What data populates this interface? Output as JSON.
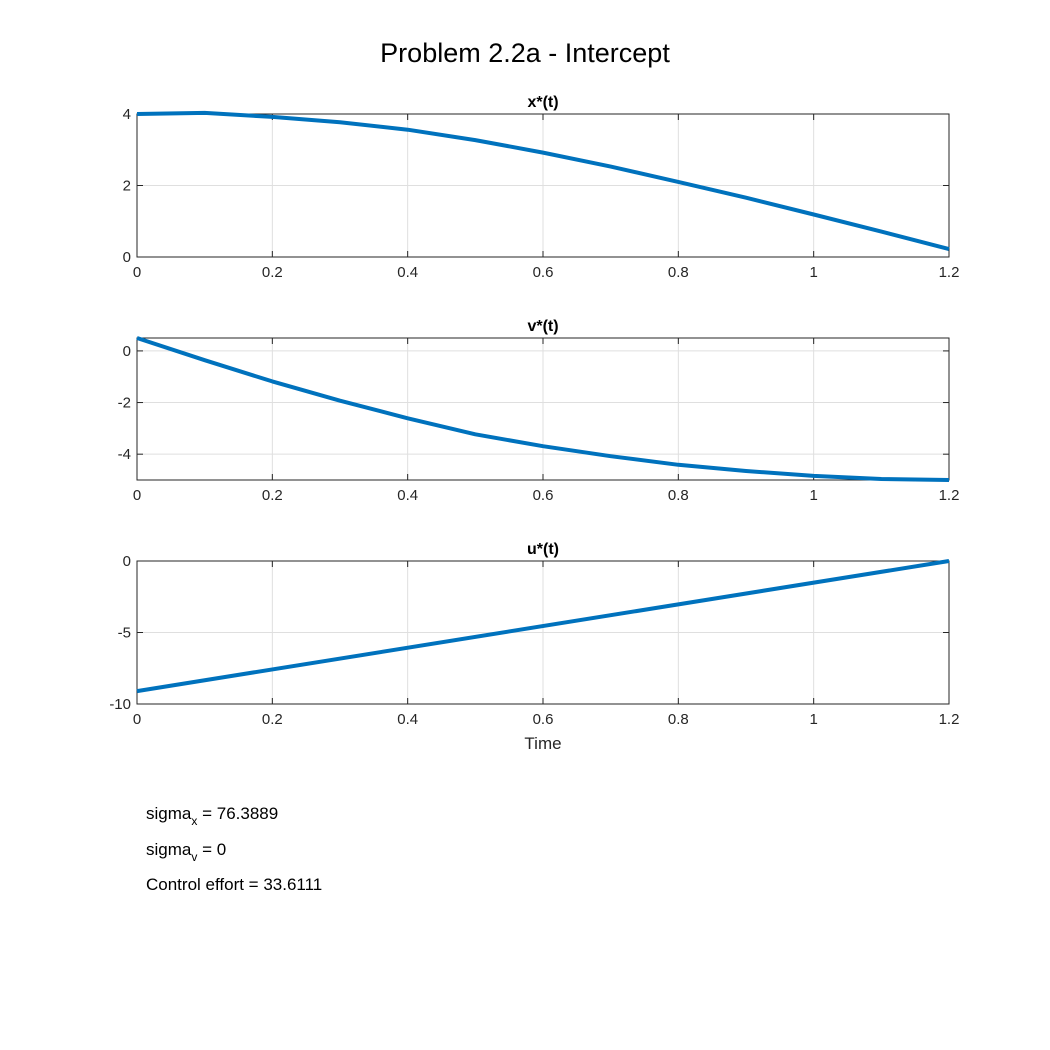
{
  "figure": {
    "title": "Problem 2.2a - Intercept"
  },
  "chart_data": [
    {
      "type": "line",
      "title": "x*(t)",
      "xlabel": "",
      "ylabel": "",
      "xlim": [
        0,
        1.2
      ],
      "ylim": [
        0,
        4
      ],
      "xticks": [
        0,
        0.2,
        0.4,
        0.6,
        0.8,
        1,
        1.2
      ],
      "xtick_labels": [
        "0",
        "0.2",
        "0.4",
        "0.6",
        "0.8",
        "1",
        "1.2"
      ],
      "yticks": [
        0,
        2,
        4
      ],
      "ytick_labels": [
        "0",
        "2",
        "4"
      ],
      "grid": true,
      "color": "#0072BD",
      "series": [
        {
          "x": [
            0,
            0.1,
            0.2,
            0.3,
            0.4,
            0.5,
            0.6,
            0.7,
            0.8,
            0.9,
            1.0,
            1.1,
            1.2
          ],
          "y": [
            4.0,
            4.03,
            3.92,
            3.77,
            3.56,
            3.27,
            2.92,
            2.53,
            2.1,
            1.66,
            1.19,
            0.71,
            0.22
          ]
        }
      ]
    },
    {
      "type": "line",
      "title": "v*(t)",
      "xlabel": "",
      "ylabel": "",
      "xlim": [
        0,
        1.2
      ],
      "ylim": [
        -5,
        0.5
      ],
      "xticks": [
        0,
        0.2,
        0.4,
        0.6,
        0.8,
        1,
        1.2
      ],
      "xtick_labels": [
        "0",
        "0.2",
        "0.4",
        "0.6",
        "0.8",
        "1",
        "1.2"
      ],
      "yticks": [
        0,
        -2,
        -4
      ],
      "ytick_labels": [
        "0",
        "-2",
        "-4"
      ],
      "grid": true,
      "color": "#0072BD",
      "series": [
        {
          "x": [
            0,
            0.1,
            0.2,
            0.3,
            0.4,
            0.5,
            0.6,
            0.7,
            0.8,
            0.9,
            1.0,
            1.1,
            1.2
          ],
          "y": [
            0.5,
            -0.36,
            -1.18,
            -1.93,
            -2.61,
            -3.23,
            -3.69,
            -4.08,
            -4.41,
            -4.65,
            -4.84,
            -4.96,
            -5.0
          ]
        }
      ]
    },
    {
      "type": "line",
      "title": "u*(t)",
      "xlabel": "Time",
      "ylabel": "",
      "xlim": [
        0,
        1.2
      ],
      "ylim": [
        -10,
        0
      ],
      "xticks": [
        0,
        0.2,
        0.4,
        0.6,
        0.8,
        1,
        1.2
      ],
      "xtick_labels": [
        "0",
        "0.2",
        "0.4",
        "0.6",
        "0.8",
        "1",
        "1.2"
      ],
      "yticks": [
        0,
        -5,
        -10
      ],
      "ytick_labels": [
        "0",
        "-5",
        "-10"
      ],
      "grid": true,
      "color": "#0072BD",
      "series": [
        {
          "x": [
            0,
            1.2
          ],
          "y": [
            -9.1,
            0
          ]
        }
      ]
    }
  ],
  "annotations": {
    "sigma_x": {
      "base": "sigma",
      "sub": "x",
      "rest": " = 76.3889"
    },
    "sigma_v": {
      "base": "sigma",
      "sub": "v",
      "rest": " = 0"
    },
    "effort": "Control effort = 33.6111"
  }
}
